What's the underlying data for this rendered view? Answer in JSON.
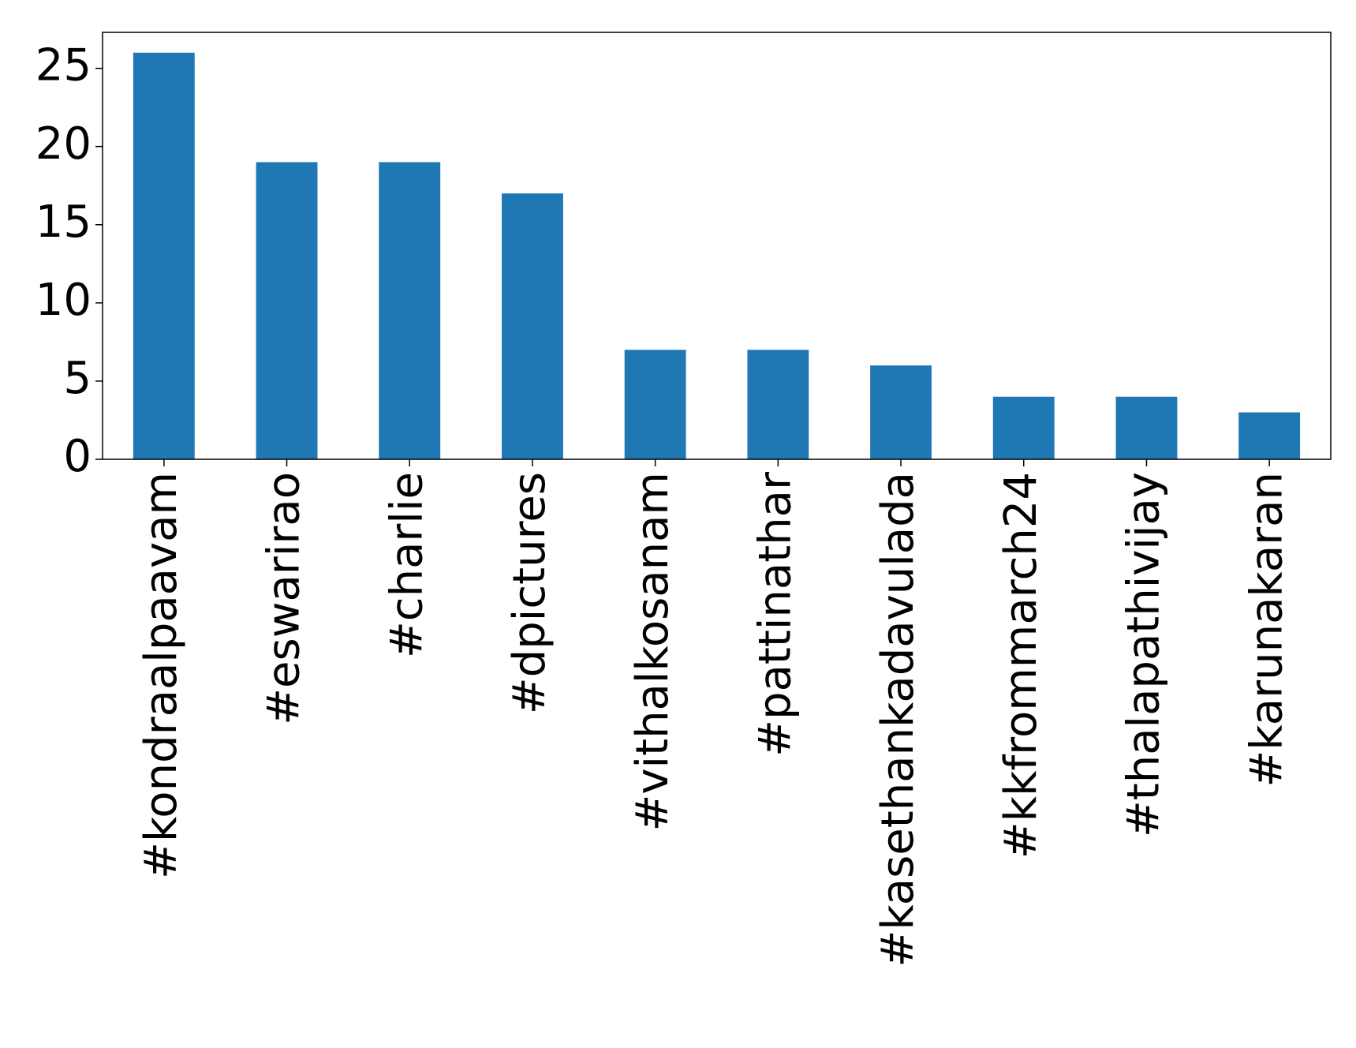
{
  "chart_data": {
    "type": "bar",
    "categories": [
      "#kondraalpaavam",
      "#eswarirao",
      "#charlie",
      "#dpictures",
      "#vithalkosanam",
      "#pattinathar",
      "#kasethankadavulada",
      "#kkfrommarch24",
      "#thalapathivijay",
      "#karunakaran"
    ],
    "values": [
      26,
      19,
      19,
      17,
      7,
      7,
      6,
      4,
      4,
      3
    ],
    "color": "#1f77b4",
    "ylim": [
      0,
      27.3
    ],
    "yticks": [
      0,
      5,
      10,
      15,
      20,
      25
    ],
    "grid": false
  }
}
